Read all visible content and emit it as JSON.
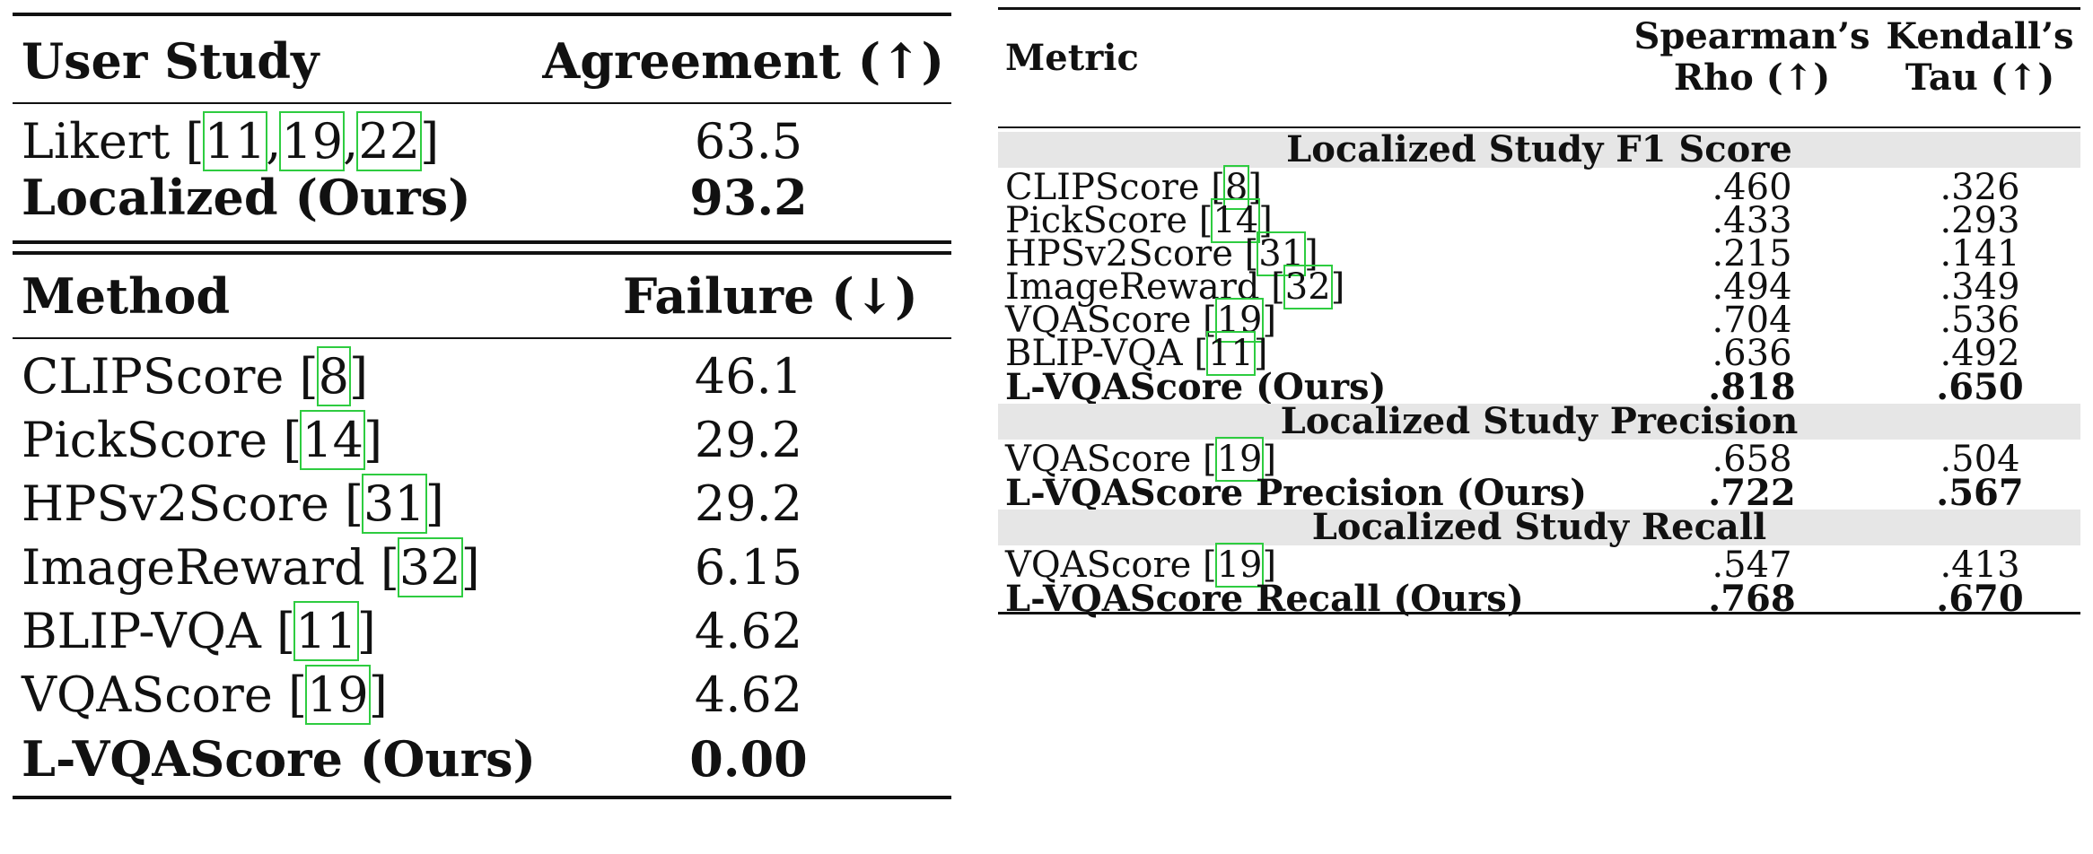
{
  "user_study_table": {
    "header": {
      "col1": "User Study",
      "col2": "Agreement (↑)"
    },
    "rows": [
      {
        "name": "Likert",
        "cites": [
          "11",
          "19",
          "22"
        ],
        "value": "63.5",
        "bold": false
      },
      {
        "name": "Localized (Ours)",
        "cites": [],
        "value": "93.2",
        "bold": true
      }
    ]
  },
  "failure_table": {
    "header": {
      "col1": "Method",
      "col2": "Failure (↓)"
    },
    "rows": [
      {
        "name": "CLIPScore",
        "cite": "8",
        "value": "46.1"
      },
      {
        "name": "PickScore",
        "cite": "14",
        "value": "29.2"
      },
      {
        "name": "HPSv2Score",
        "cite": "31",
        "value": "29.2"
      },
      {
        "name": "ImageReward",
        "cite": "32",
        "value": "6.15"
      },
      {
        "name": "BLIP-VQA",
        "cite": "11",
        "value": "4.62"
      },
      {
        "name": "VQAScore",
        "cite": "19",
        "value": "4.62"
      },
      {
        "name": "L-VQAScore (Ours)",
        "cite": "",
        "value": "0.00"
      }
    ]
  },
  "metric_table": {
    "header": {
      "metric": "Metric",
      "col1_line1": "Spearman’s",
      "col1_line2": "Rho (↑)",
      "col2_line1": "Kendall’s",
      "col2_line2": "Tau (↑)"
    },
    "sections": [
      {
        "title": "Localized Study F1 Score",
        "rows": [
          {
            "name": "CLIPScore",
            "cite": "8",
            "rho": ".460",
            "tau": ".326"
          },
          {
            "name": "PickScore",
            "cite": "14",
            "rho": ".433",
            "tau": ".293"
          },
          {
            "name": "HPSv2Score",
            "cite": "31",
            "rho": ".215",
            "tau": ".141"
          },
          {
            "name": "ImageReward",
            "cite": "32",
            "rho": ".494",
            "tau": ".349"
          },
          {
            "name": "VQAScore",
            "cite": "19",
            "rho": ".704",
            "tau": ".536"
          },
          {
            "name": "BLIP-VQA",
            "cite": "11",
            "rho": ".636",
            "tau": ".492"
          },
          {
            "name": "L-VQAScore (Ours)",
            "cite": "",
            "rho": ".818",
            "tau": ".650"
          }
        ]
      },
      {
        "title": "Localized Study Precision",
        "rows": [
          {
            "name": "VQAScore",
            "cite": "19",
            "rho": ".658",
            "tau": ".504"
          },
          {
            "name": "L-VQAScore Precision (Ours)",
            "cite": "",
            "rho": ".722",
            "tau": ".567"
          }
        ]
      },
      {
        "title": "Localized Study Recall",
        "rows": [
          {
            "name": "VQAScore",
            "cite": "19",
            "rho": ".547",
            "tau": ".413"
          },
          {
            "name": "L-VQAScore Recall (Ours)",
            "cite": "",
            "rho": ".768",
            "tau": ".670"
          }
        ]
      }
    ]
  }
}
